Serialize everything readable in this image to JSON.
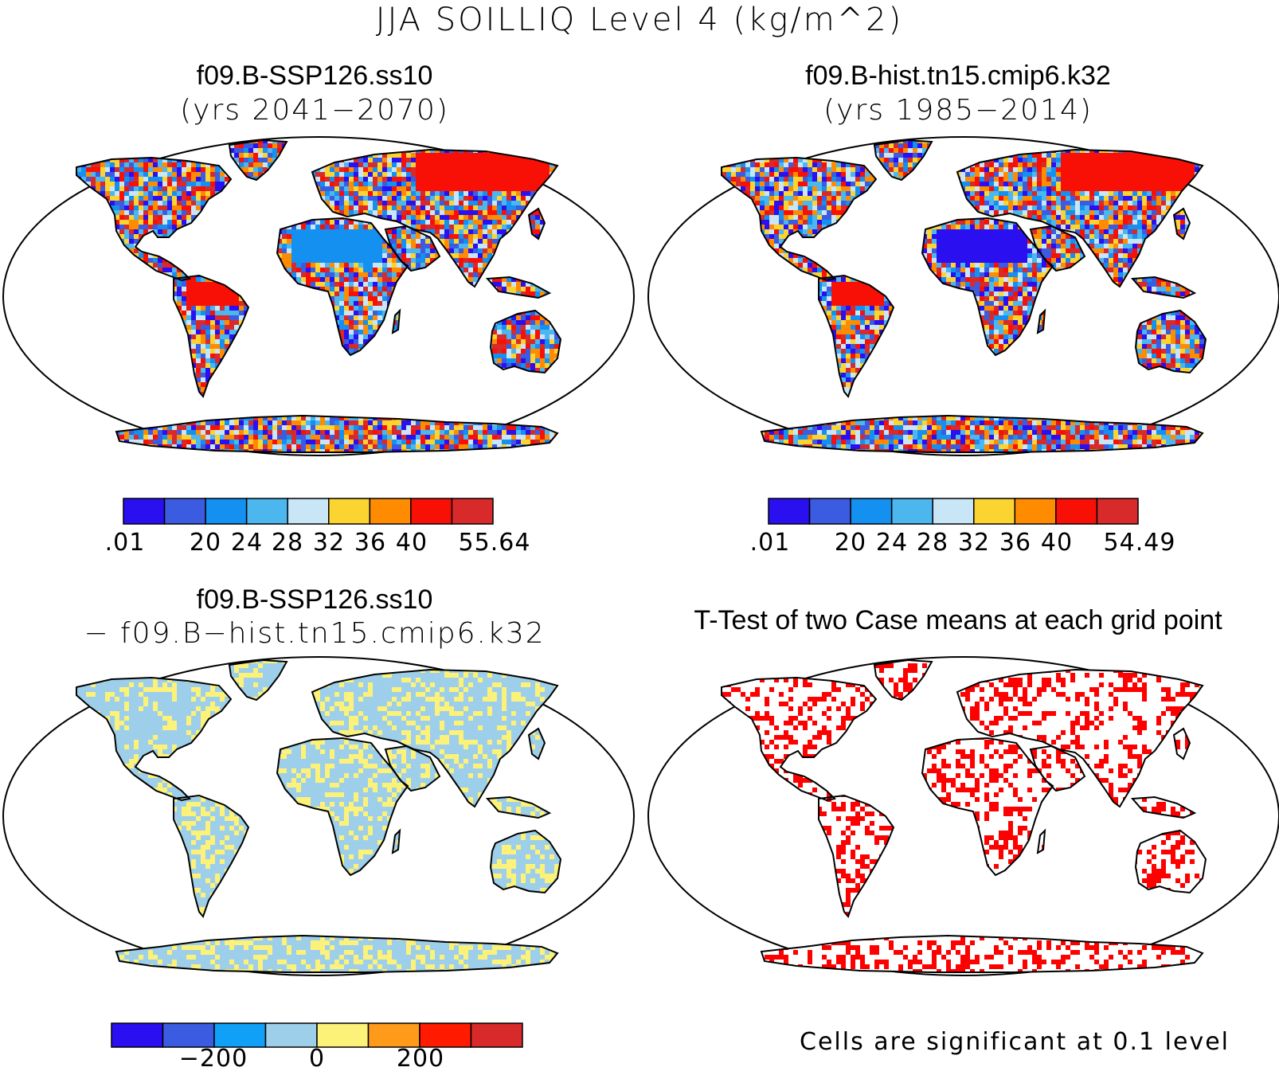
{
  "title": "JJA SOILLIQ Level 4 (kg/m^2)",
  "panels": {
    "top_left": {
      "title": "f09.B-SSP126.ss10",
      "subtitle": "(yrs 2041−2070)"
    },
    "top_right": {
      "title": "f09.B-hist.tn15.cmip6.k32",
      "subtitle": "(yrs 1985−2014)"
    },
    "bottom_left": {
      "title": "f09.B-SSP126.ss10",
      "subtitle": "− f09.B−hist.tn15.cmip6.k32"
    },
    "bottom_right": {
      "title": "T-Test of two Case means at each grid point",
      "note": "Cells are significant at 0.1 level"
    }
  },
  "colorbars": {
    "top_left": {
      "colors": [
        "#2a0ff0",
        "#3b5ce0",
        "#1490f0",
        "#4cb6ee",
        "#c8e6f6",
        "#fcd431",
        "#ff8c00",
        "#f81006",
        "#d82a2a"
      ],
      "labels": [
        ".01",
        "20",
        "24",
        "28",
        "32",
        "36",
        "40",
        "55.64"
      ]
    },
    "top_right": {
      "colors": [
        "#2a0ff0",
        "#3b5ce0",
        "#1490f0",
        "#4cb6ee",
        "#c8e6f6",
        "#fcd431",
        "#ff8c00",
        "#f81006",
        "#d82a2a"
      ],
      "labels": [
        ".01",
        "20",
        "24",
        "28",
        "32",
        "36",
        "40",
        "54.49"
      ]
    },
    "bottom_left": {
      "colors": [
        "#2a0ff0",
        "#3b5ce0",
        "#11a0f8",
        "#9dcfea",
        "#fcf27a",
        "#ff9a1a",
        "#ff1a00",
        "#d82a2a"
      ],
      "labels": [
        "−200",
        "0",
        "200"
      ]
    }
  },
  "colors": {
    "significant": "#ff0000",
    "outline": "#000000",
    "diff_positive": "#fcf27a",
    "diff_negative": "#9dcfea"
  }
}
